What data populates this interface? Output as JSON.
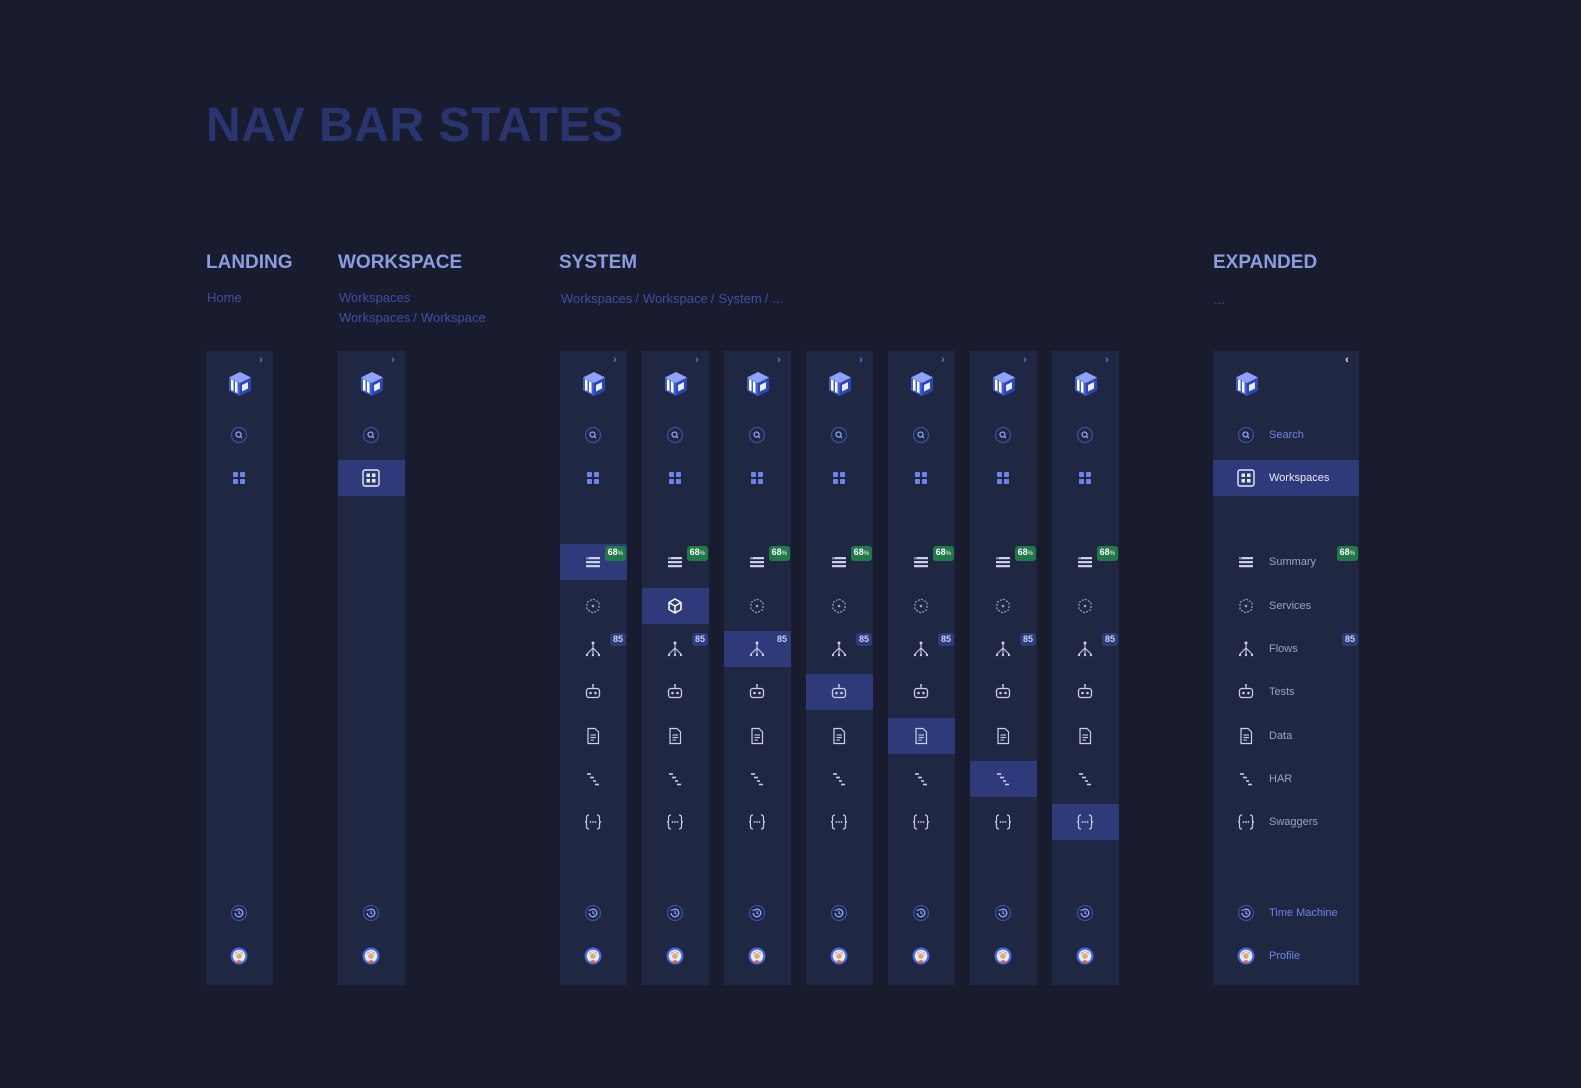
{
  "page_title": "NAV BAR STATES",
  "sections": {
    "landing": {
      "title": "LANDING",
      "crumbs": [
        "Home"
      ]
    },
    "workspace": {
      "title": "WORKSPACE",
      "crumbs": [
        "Workspaces",
        "Workspaces",
        "/",
        "Workspace"
      ]
    },
    "system": {
      "title": "SYSTEM",
      "crumbs": [
        "Workspaces",
        "/",
        "Workspace",
        "/",
        "System",
        "/",
        "..."
      ]
    },
    "expanded": {
      "title": "EXPANDED",
      "crumbs": [
        "..."
      ]
    }
  },
  "colors": {
    "background": "#191c2e",
    "nav_bg": "#202742",
    "active_bg": "#2e3a7a",
    "accent": "#5b73e0",
    "badge_green": "#1f7a4a",
    "badge_navy": "#2f3b7c"
  },
  "icons": {
    "toggle_collapsed": "chevron-right-icon",
    "toggle_expanded": "chevron-left-icon",
    "logo": "logo-icon",
    "search": "search-icon",
    "workspaces": "grid-icon",
    "summary": "list-icon",
    "services": "cube-icon",
    "flows": "flow-icon",
    "tests": "robot-icon",
    "data": "document-icon",
    "har": "har-icon",
    "swaggers": "braces-icon",
    "time_machine": "history-icon",
    "profile": "avatar"
  },
  "badges": {
    "summary": "68",
    "summary_unit": "%",
    "flows": "85"
  },
  "expanded_nav": {
    "search": "Search",
    "workspaces": "Workspaces",
    "summary": "Summary",
    "services": "Services",
    "flows": "Flows",
    "tests": "Tests",
    "data": "Data",
    "har": "HAR",
    "swaggers": "Swaggers",
    "time_machine": "Time Machine",
    "profile": "Profile"
  },
  "system_active_order": [
    "summary",
    "services",
    "flows",
    "tests",
    "data",
    "har",
    "swaggers"
  ]
}
